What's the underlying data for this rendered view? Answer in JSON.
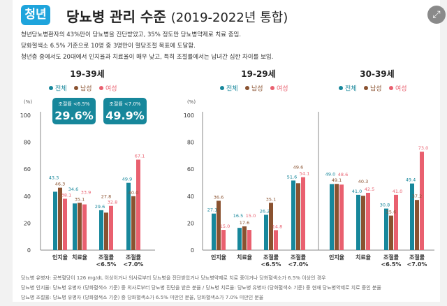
{
  "header": {
    "badge": "청년",
    "title": "당뇨병 관리 수준",
    "title_period": "(2019-2022년 통합)",
    "expand_icon": "expand-icon"
  },
  "description": [
    "청년당뇨병환자의 43%만이 당뇨병을 진단받았고, 35% 정도만 당뇨병약제로 치료 중임.",
    "당화혈색소 6.5% 기준으로 10명 중 3명만이 혈당조절 목표에 도달함.",
    "청년층 중에서도 20대에서 인지율과 치료율이 매우 낮고, 특히 조절률에서는 남녀간 심한 차이를 보임."
  ],
  "colors": {
    "total": "#17879b",
    "male": "#8a5230",
    "female": "#e9606f",
    "callout": "#17879b"
  },
  "callouts": [
    {
      "label": "조절률 <6.5%",
      "value": "29.6%"
    },
    {
      "label": "조절률 <7.0%",
      "value": "49.9%"
    }
  ],
  "chart_data": [
    {
      "type": "bar",
      "title": "19-39세",
      "ylabel": "(%)",
      "ylim": [
        0,
        100
      ],
      "yticks": [
        "0",
        "20",
        "40",
        "60",
        "80",
        "100"
      ],
      "categories": [
        "인지율",
        "치료율",
        "조절률|<6.5%",
        "조절률|<7.0%"
      ],
      "series": [
        {
          "name": "전체",
          "values": [
            43.3,
            34.6,
            29.6,
            49.9
          ]
        },
        {
          "name": "남성",
          "values": [
            46.3,
            35.1,
            27.8,
            40.0
          ]
        },
        {
          "name": "여성",
          "values": [
            38.1,
            33.9,
            32.8,
            67.1
          ]
        }
      ]
    },
    {
      "type": "bar",
      "title": "19-29세",
      "ylabel": "(%)",
      "ylim": [
        0,
        100
      ],
      "yticks": [
        "0",
        "20",
        "40",
        "60",
        "80",
        "100"
      ],
      "categories": [
        "인지율",
        "치료율",
        "조절률|<6.5%",
        "조절률|<7.0%"
      ],
      "series": [
        {
          "name": "전체",
          "values": [
            27.1,
            16.5,
            26.2,
            51.6
          ]
        },
        {
          "name": "남성",
          "values": [
            36.6,
            17.6,
            35.1,
            49.6
          ]
        },
        {
          "name": "여성",
          "values": [
            15.0,
            15.0,
            14.8,
            54.1
          ]
        }
      ]
    },
    {
      "type": "bar",
      "title": "30-39세",
      "ylim": [
        0,
        100
      ],
      "categories": [
        "인지율",
        "치료율",
        "조절률|<6.5%",
        "조절률|<7.0%"
      ],
      "series": [
        {
          "name": "전체",
          "values": [
            49.0,
            41.0,
            30.8,
            49.4
          ]
        },
        {
          "name": "남성",
          "values": [
            49.1,
            40.3,
            25.6,
            37.2
          ]
        },
        {
          "name": "여성",
          "values": [
            48.6,
            42.5,
            41.0,
            73.0
          ]
        }
      ]
    }
  ],
  "notes": [
    "당뇨병 유병자: 공복혈당이 126 mg/dL 이상이거나 의사로부터 당뇨병을 진단받았거나 당뇨병약제로 치료 중이거나 당화혈색소가 6.5% 이상인 경우",
    "당뇨병 인지율: 당뇨병 유병자 (당화혈색소 기준) 중 의사로부터 당뇨병 진단을 받은 분율 / 당뇨병 치료율: 당뇨병 유병자 (당화혈색소 기준) 중 현재 당뇨병약제로 치료 중인 분율",
    "당뇨병 조절률: 당뇨병 유병자 (당화혈색소 기준) 중 당화혈색소가 6.5% 미만인 분율, 당화혈색소가 7.0% 미만인 분율"
  ]
}
